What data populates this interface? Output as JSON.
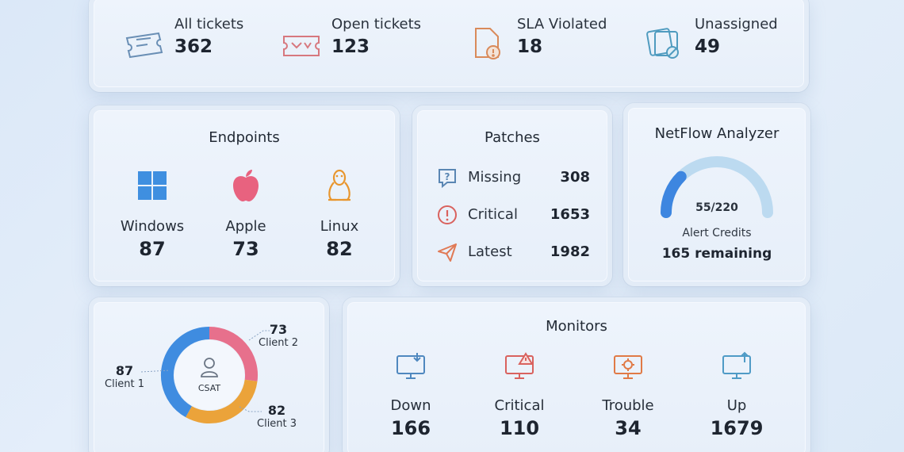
{
  "tickets": {
    "all": {
      "label": "All tickets",
      "value": "362"
    },
    "open": {
      "label": "Open tickets",
      "value": "123"
    },
    "sla": {
      "label": "SLA Violated",
      "value": "18"
    },
    "unassigned": {
      "label": "Unassigned",
      "value": "49"
    }
  },
  "endpoints": {
    "title": "Endpoints",
    "items": [
      {
        "label": "Windows",
        "value": "87",
        "icon": "windows-icon"
      },
      {
        "label": "Apple",
        "value": "73",
        "icon": "apple-icon"
      },
      {
        "label": "Linux",
        "value": "82",
        "icon": "linux-icon"
      }
    ]
  },
  "patches": {
    "title": "Patches",
    "items": [
      {
        "label": "Missing",
        "value": "308",
        "icon": "question-icon"
      },
      {
        "label": "Critical",
        "value": "1653",
        "icon": "alert-icon"
      },
      {
        "label": "Latest",
        "value": "1982",
        "icon": "send-icon"
      }
    ]
  },
  "netflow": {
    "title": "NetFlow Analyzer",
    "gauge_value": 55,
    "gauge_max": 220,
    "gauge_text": "55/220",
    "credits_label": "Alert Credits",
    "credits_value": "165 remaining"
  },
  "csat": {
    "center_label": "CSAT",
    "clients": [
      {
        "name": "Client 1",
        "value": "87"
      },
      {
        "name": "Client 2",
        "value": "73"
      },
      {
        "name": "Client 3",
        "value": "82"
      }
    ]
  },
  "monitors": {
    "title": "Monitors",
    "items": [
      {
        "label": "Down",
        "value": "166"
      },
      {
        "label": "Critical",
        "value": "110"
      },
      {
        "label": "Trouble",
        "value": "34"
      },
      {
        "label": "Up",
        "value": "1679"
      }
    ]
  },
  "colors": {
    "blue": "#4a8fe0",
    "pink": "#e76a8a",
    "orange": "#e89a3a",
    "teal": "#5aa9c8"
  }
}
